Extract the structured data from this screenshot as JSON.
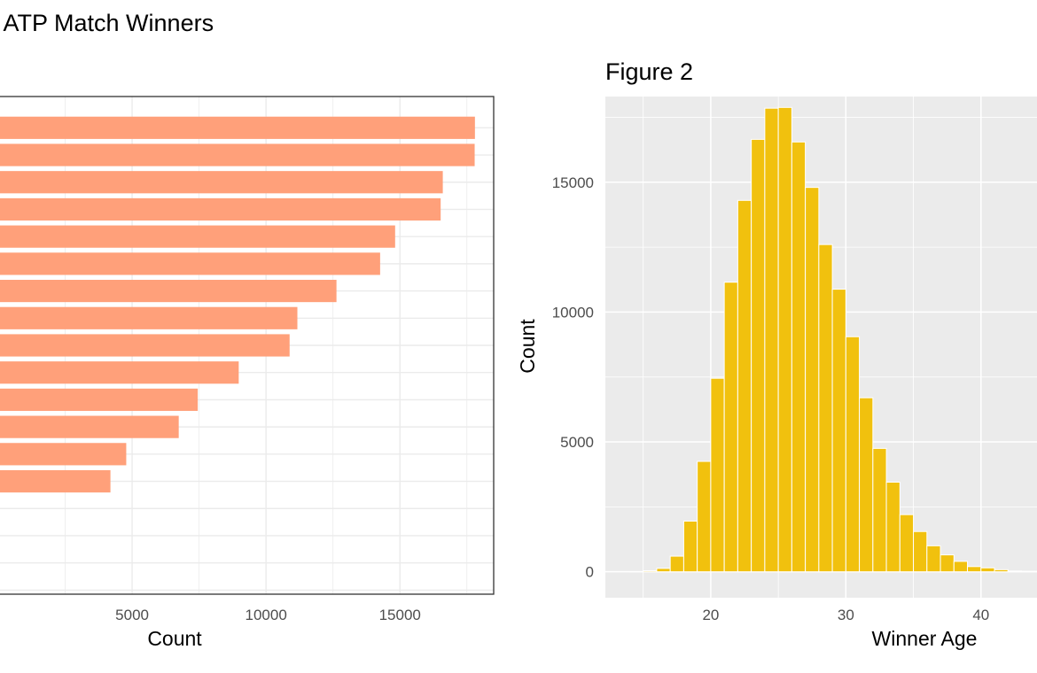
{
  "colors": {
    "bar_fill_left": "#FFA07A",
    "bar_fill_right": "#F1C10E",
    "bar_edge_right": "#ffffff",
    "panel_bg_right": "#EBEBEB",
    "grid_left": "#EBEBEB",
    "text_tick": "#4d4d4d"
  },
  "chart_data": [
    {
      "type": "bar",
      "orientation": "horizontal",
      "title": "f ATP Match Winners",
      "xlabel": "Count",
      "ylabel": "",
      "xlim": [
        0,
        18500
      ],
      "x_ticks": [
        5000,
        10000,
        15000
      ],
      "x_tick_labels": [
        "5000",
        "10000",
        "15000"
      ],
      "categories_visible": false,
      "values": [
        17800,
        17790,
        16600,
        16520,
        14820,
        14260,
        12630,
        11170,
        10880,
        8980,
        7450,
        6740,
        4780,
        4190,
        0,
        0,
        0,
        0
      ]
    },
    {
      "type": "bar",
      "subtype": "histogram",
      "title": "Figure 2",
      "xlabel": "Winner Age",
      "ylabel": "Count",
      "xlim": [
        12.2,
        45
      ],
      "ylim": [
        -1000,
        18300
      ],
      "x_ticks": [
        20,
        30,
        40
      ],
      "x_tick_labels": [
        "20",
        "30",
        "40"
      ],
      "y_ticks": [
        0,
        5000,
        10000,
        15000
      ],
      "y_tick_labels": [
        "0",
        "5000",
        "10000",
        "15000"
      ],
      "bin_width": 1,
      "bins_start": [
        14,
        15,
        16,
        17,
        18,
        19,
        20,
        21,
        22,
        23,
        24,
        25,
        26,
        27,
        28,
        29,
        30,
        31,
        32,
        33,
        34,
        35,
        36,
        37,
        38,
        39,
        40,
        41,
        42,
        43,
        44
      ],
      "values": [
        10,
        40,
        130,
        600,
        1950,
        4250,
        7450,
        11150,
        14300,
        16650,
        17850,
        17880,
        16550,
        14800,
        12600,
        10880,
        9050,
        6700,
        4750,
        3450,
        2200,
        1550,
        1000,
        650,
        400,
        200,
        150,
        80,
        30,
        20,
        20
      ]
    }
  ]
}
